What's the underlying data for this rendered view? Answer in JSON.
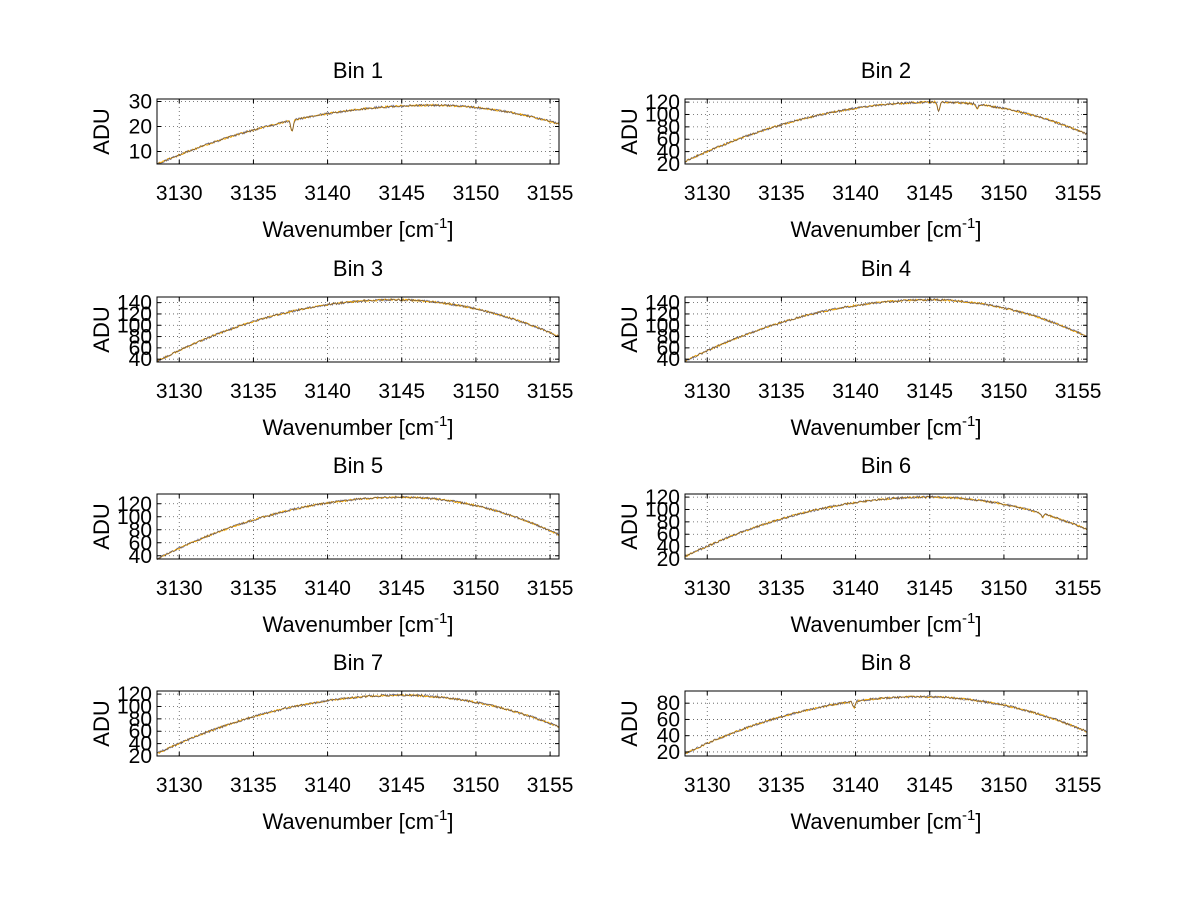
{
  "chart_data": [
    {
      "type": "line",
      "title": "Bin 1",
      "xlabel": "Wavenumber [cm",
      "xlabel_sup": "-1",
      "xlabel_close": "]",
      "ylabel": "ADU",
      "xlim": [
        3128.5,
        3155.6
      ],
      "ylim": [
        5,
        31
      ],
      "xticks": [
        3130,
        3135,
        3140,
        3145,
        3150,
        3155
      ],
      "yticks": [
        10,
        20,
        30
      ],
      "peak_x": 3147,
      "y_start": 5,
      "y_peak": 28.5,
      "y_end": 21,
      "dips": [
        {
          "x": 3137.6,
          "depth": 4.5
        }
      ],
      "series": [
        {
          "color": "#f5a800"
        },
        {
          "color": "#3a3a66"
        }
      ]
    },
    {
      "type": "line",
      "title": "Bin 2",
      "xlabel": "Wavenumber [cm",
      "xlabel_sup": "-1",
      "xlabel_close": "]",
      "ylabel": "ADU",
      "xlim": [
        3128.5,
        3155.6
      ],
      "ylim": [
        20,
        125
      ],
      "xticks": [
        3130,
        3135,
        3140,
        3145,
        3150,
        3155
      ],
      "yticks": [
        20,
        40,
        60,
        80,
        100,
        120
      ],
      "peak_x": 3145.5,
      "y_start": 24,
      "y_peak": 120,
      "y_end": 68,
      "dips": [
        {
          "x": 3145.6,
          "depth": 15
        },
        {
          "x": 3148.2,
          "depth": 6
        }
      ],
      "series": [
        {
          "color": "#f5a800"
        },
        {
          "color": "#3a3a66"
        }
      ]
    },
    {
      "type": "line",
      "title": "Bin 3",
      "xlabel": "Wavenumber [cm",
      "xlabel_sup": "-1",
      "xlabel_close": "]",
      "ylabel": "ADU",
      "xlim": [
        3128.5,
        3155.6
      ],
      "ylim": [
        35,
        150
      ],
      "xticks": [
        3130,
        3135,
        3140,
        3145,
        3150,
        3155
      ],
      "yticks": [
        40,
        60,
        80,
        100,
        120,
        140
      ],
      "peak_x": 3144.5,
      "y_start": 36,
      "y_peak": 145,
      "y_end": 80,
      "dips": [],
      "series": [
        {
          "color": "#f5a800"
        },
        {
          "color": "#3a3a66"
        }
      ]
    },
    {
      "type": "line",
      "title": "Bin 4",
      "xlabel": "Wavenumber [cm",
      "xlabel_sup": "-1",
      "xlabel_close": "]",
      "ylabel": "ADU",
      "xlim": [
        3128.5,
        3155.6
      ],
      "ylim": [
        35,
        150
      ],
      "xticks": [
        3130,
        3135,
        3140,
        3145,
        3150,
        3155
      ],
      "yticks": [
        40,
        60,
        80,
        100,
        120,
        140
      ],
      "peak_x": 3145,
      "y_start": 36,
      "y_peak": 145,
      "y_end": 80,
      "dips": [],
      "series": [
        {
          "color": "#f5a800"
        },
        {
          "color": "#3a3a66"
        }
      ]
    },
    {
      "type": "line",
      "title": "Bin 5",
      "xlabel": "Wavenumber [cm",
      "xlabel_sup": "-1",
      "xlabel_close": "]",
      "ylabel": "ADU",
      "xlim": [
        3128.5,
        3155.6
      ],
      "ylim": [
        35,
        135
      ],
      "xticks": [
        3130,
        3135,
        3140,
        3145,
        3150,
        3155
      ],
      "yticks": [
        40,
        60,
        80,
        100,
        120
      ],
      "peak_x": 3145,
      "y_start": 35,
      "y_peak": 130,
      "y_end": 72,
      "dips": [],
      "series": [
        {
          "color": "#f5a800"
        },
        {
          "color": "#3a3a66"
        }
      ]
    },
    {
      "type": "line",
      "title": "Bin 6",
      "xlabel": "Wavenumber [cm",
      "xlabel_sup": "-1",
      "xlabel_close": "]",
      "ylabel": "ADU",
      "xlim": [
        3128.5,
        3155.6
      ],
      "ylim": [
        20,
        125
      ],
      "xticks": [
        3130,
        3135,
        3140,
        3145,
        3150,
        3155
      ],
      "yticks": [
        20,
        40,
        60,
        80,
        100,
        120
      ],
      "peak_x": 3145,
      "y_start": 24,
      "y_peak": 120,
      "y_end": 68,
      "dips": [
        {
          "x": 3152.6,
          "depth": 6
        }
      ],
      "series": [
        {
          "color": "#f5a800"
        },
        {
          "color": "#3a3a66"
        }
      ]
    },
    {
      "type": "line",
      "title": "Bin 7",
      "xlabel": "Wavenumber [cm",
      "xlabel_sup": "-1",
      "xlabel_close": "]",
      "ylabel": "ADU",
      "xlim": [
        3128.5,
        3155.6
      ],
      "ylim": [
        20,
        125
      ],
      "xticks": [
        3130,
        3135,
        3140,
        3145,
        3150,
        3155
      ],
      "yticks": [
        20,
        40,
        60,
        80,
        100,
        120
      ],
      "peak_x": 3145,
      "y_start": 24,
      "y_peak": 118,
      "y_end": 67,
      "dips": [],
      "series": [
        {
          "color": "#f5a800"
        },
        {
          "color": "#3a3a66"
        }
      ]
    },
    {
      "type": "line",
      "title": "Bin 8",
      "xlabel": "Wavenumber [cm",
      "xlabel_sup": "-1",
      "xlabel_close": "]",
      "ylabel": "ADU",
      "xlim": [
        3128.5,
        3155.6
      ],
      "ylim": [
        15,
        95
      ],
      "xticks": [
        3130,
        3135,
        3140,
        3145,
        3150,
        3155
      ],
      "yticks": [
        20,
        40,
        60,
        80
      ],
      "peak_x": 3144.5,
      "y_start": 18,
      "y_peak": 88,
      "y_end": 45,
      "dips": [
        {
          "x": 3139.9,
          "depth": 8
        }
      ],
      "series": [
        {
          "color": "#f5a800"
        },
        {
          "color": "#3a3a66"
        }
      ]
    }
  ]
}
